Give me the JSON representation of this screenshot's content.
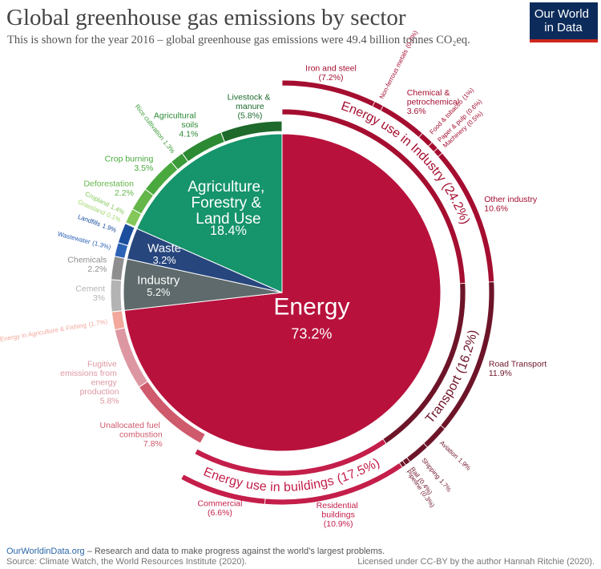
{
  "chart_data": {
    "type": "pie",
    "title": "Global greenhouse gas emissions by sector",
    "subtitle": "This is shown for the year 2016 – global greenhouse gas emissions were 49.4 billion tonnes CO₂eq.",
    "sectors": [
      {
        "name": "Energy",
        "value": 73.2,
        "value_label": "73.2%",
        "color": "#b8113c",
        "children": [
          {
            "name": "Energy use in Industry",
            "value": 24.2,
            "value_label": "(24.2%)",
            "color": "#a50e30",
            "children": [
              {
                "name": "Iron and steel",
                "value": 7.2,
                "value_label": "(7.2%)",
                "color": "#a50e30"
              },
              {
                "name": "Non-ferrous metals",
                "value": 0.7,
                "value_label": "(0.7%)",
                "color": "#a50e30"
              },
              {
                "name": "Chemical & petrochemical",
                "value": 3.6,
                "value_label": "3.6%",
                "color": "#a50e30"
              },
              {
                "name": "Food & tobacco",
                "value": 1,
                "value_label": "(1%)",
                "color": "#a50e30"
              },
              {
                "name": "Paper & pulp",
                "value": 0.6,
                "value_label": "(0.6%)",
                "color": "#a50e30"
              },
              {
                "name": "Machinery",
                "value": 0.5,
                "value_label": "(0.5%)",
                "color": "#a50e30"
              },
              {
                "name": "Other industry",
                "value": 10.6,
                "value_label": "10.6%",
                "color": "#a50e30"
              }
            ]
          },
          {
            "name": "Transport",
            "value": 16.2,
            "value_label": "(16.2%)",
            "color": "#6d1428",
            "children": [
              {
                "name": "Road Transport",
                "value": 11.9,
                "value_label": "11.9%",
                "color": "#6d1428"
              },
              {
                "name": "Aviation",
                "value": 1.9,
                "value_label": "1.9%",
                "color": "#6d1428"
              },
              {
                "name": "Shipping",
                "value": 1.7,
                "value_label": "1.7%",
                "color": "#6d1428"
              },
              {
                "name": "Rail",
                "value": 0.4,
                "value_label": "(0.4%)",
                "color": "#6d1428"
              },
              {
                "name": "Pipeline",
                "value": 0.3,
                "value_label": "(0.3%)",
                "color": "#6d1428"
              }
            ]
          },
          {
            "name": "Energy use in buildings",
            "value": 17.5,
            "value_label": "(17.5%)",
            "color": "#c41e4a",
            "children": [
              {
                "name": "Residential buildings",
                "value": 10.9,
                "value_label": "(10.9%)",
                "color": "#c41e4a"
              },
              {
                "name": "Commercial",
                "value": 6.6,
                "value_label": "(6.6%)",
                "color": "#c41e4a"
              }
            ]
          },
          {
            "name": "Unallocated fuel combustion",
            "value": 7.8,
            "value_label": "7.8%",
            "color": "#cf5a6c"
          },
          {
            "name": "Fugitive emissions from energy production",
            "value": 5.8,
            "value_label": "5.8%",
            "color": "#dd97a2"
          },
          {
            "name": "Energy in Agriculture & Fishing",
            "value": 1.7,
            "value_label": "(1.7%)",
            "color": "#f2a89c"
          }
        ]
      },
      {
        "name": "Industry",
        "value": 5.2,
        "value_label": "5.2%",
        "color": "#5e6a6b",
        "children": [
          {
            "name": "Cement",
            "value": 3,
            "value_label": "3%",
            "color": "#b3b3b3"
          },
          {
            "name": "Chemicals",
            "value": 2.2,
            "value_label": "2.2%",
            "color": "#8e8e8e"
          }
        ]
      },
      {
        "name": "Waste",
        "value": 3.2,
        "value_label": "3.2%",
        "color": "#27467d",
        "children": [
          {
            "name": "Wastewater",
            "value": 1.3,
            "value_label": "(1.3%)",
            "color": "#2c62b5"
          },
          {
            "name": "Landfills",
            "value": 1.9,
            "value_label": "1.9%",
            "color": "#1b4f9e"
          }
        ]
      },
      {
        "name": "Agriculture, Forestry & Land Use",
        "value": 18.4,
        "value_label": "18.4%",
        "color": "#16946b",
        "children": [
          {
            "name": "Grassland",
            "value": 0.1,
            "value_label": "0.1%",
            "color": "#a3d66e"
          },
          {
            "name": "Cropland",
            "value": 1.4,
            "value_label": "1.4%",
            "color": "#84c75a"
          },
          {
            "name": "Deforestation",
            "value": 2.2,
            "value_label": "2.2%",
            "color": "#64b64b"
          },
          {
            "name": "Crop burning",
            "value": 3.5,
            "value_label": "3.5%",
            "color": "#4aa93e"
          },
          {
            "name": "Rice cultivation",
            "value": 1.3,
            "value_label": "1.3%",
            "color": "#3a9b38"
          },
          {
            "name": "Agricultural soils",
            "value": 4.1,
            "value_label": "4.1%",
            "color": "#2c8934"
          },
          {
            "name": "Livestock & manure",
            "value": 5.8,
            "value_label": "(5.8%)",
            "color": "#1d6a2c"
          }
        ]
      }
    ]
  },
  "logo": "Our World in Data",
  "footer": {
    "site": "OurWorldinData.org",
    "tagline": "– Research and data to make progress against the world’s largest problems.",
    "source": "Source: Climate Watch, the World Resources Institute (2020).",
    "license": "Licensed under CC-BY by the author Hannah Ritchie (2020)."
  }
}
